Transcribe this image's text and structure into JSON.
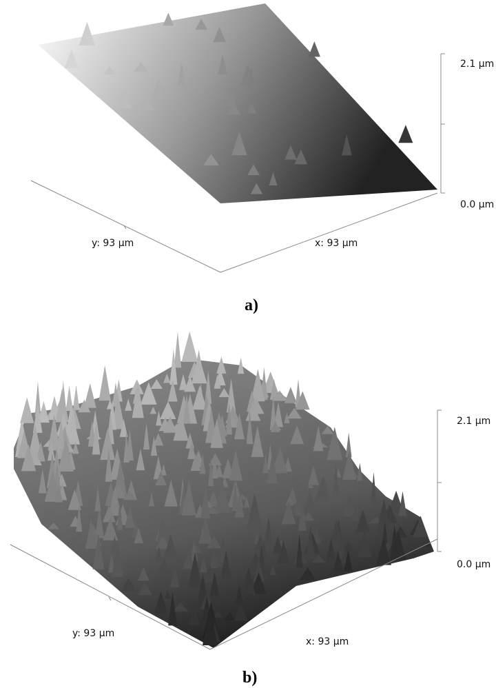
{
  "panels": [
    {
      "label": "a)",
      "y_axis": "y: 93 µm",
      "x_axis": "x: 93 µm",
      "z_max": "2.1 µm",
      "z_min": "0.0 µm"
    },
    {
      "label": "b)",
      "y_axis": "y: 93 µm",
      "x_axis": "x: 93 µm",
      "z_max": "2.1 µm",
      "z_min": "0.0 µm"
    }
  ]
}
